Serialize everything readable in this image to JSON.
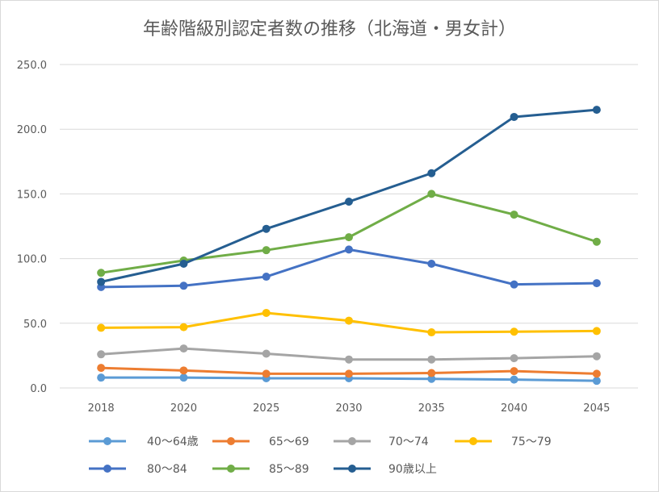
{
  "chart_data": {
    "type": "line",
    "title": "年齢階級別認定者数の推移（北海道・男女計）",
    "xlabel": "",
    "ylabel": "",
    "categories": [
      "2018",
      "2020",
      "2025",
      "2030",
      "2035",
      "2040",
      "2045"
    ],
    "ylim": [
      0,
      250
    ],
    "yticks": [
      "0.0",
      "50.0",
      "100.0",
      "150.0",
      "200.0",
      "250.0"
    ],
    "grid": true,
    "legend_position": "bottom",
    "series": [
      {
        "name": "40～64歳",
        "color": "#5b9bd5",
        "values": [
          8,
          8,
          7.5,
          7.5,
          7,
          6.5,
          5.5
        ]
      },
      {
        "name": "65～69",
        "color": "#ed7d31",
        "values": [
          15.5,
          13.5,
          11,
          11,
          11.5,
          13,
          11
        ]
      },
      {
        "name": "70～74",
        "color": "#a5a5a5",
        "values": [
          26,
          30.5,
          26.5,
          22,
          22,
          23,
          24.5
        ]
      },
      {
        "name": "75～79",
        "color": "#ffc000",
        "values": [
          46.5,
          47,
          58,
          52,
          43,
          43.5,
          44
        ]
      },
      {
        "name": "80～84",
        "color": "#4472c4",
        "values": [
          78,
          79,
          86,
          107,
          96,
          80,
          81
        ]
      },
      {
        "name": "85～89",
        "color": "#70ad47",
        "values": [
          89,
          98.5,
          106.5,
          116.5,
          150,
          134,
          113
        ]
      },
      {
        "name": "90歳以上",
        "color": "#255e91",
        "values": [
          82,
          96,
          123,
          144,
          166,
          209.5,
          215
        ]
      }
    ]
  }
}
